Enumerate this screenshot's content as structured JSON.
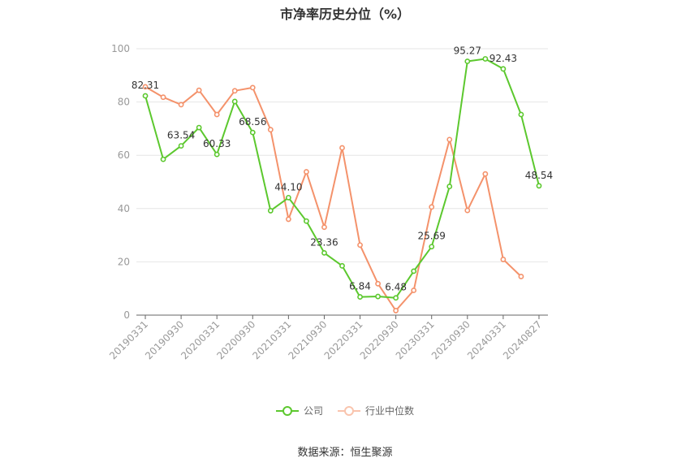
{
  "title": "市净率历史分位（%）",
  "source": "数据来源：恒生聚源",
  "colors": {
    "company": "#5cc82e",
    "industry": "#f4926b",
    "grid": "#e6e6e6",
    "axis": "#999999"
  },
  "chart_data": {
    "type": "line",
    "title": "市净率历史分位（%）",
    "xlabel": "",
    "ylabel": "",
    "ylim": [
      0,
      100
    ],
    "yticks": [
      0,
      20,
      40,
      60,
      80,
      100
    ],
    "grid": true,
    "legend_position": "bottom",
    "x": [
      "20190331",
      "20190630",
      "20190930",
      "20191231",
      "20200331",
      "20200630",
      "20200930",
      "20201231",
      "20210331",
      "20210630",
      "20210930",
      "20211231",
      "20220331",
      "20220630",
      "20220930",
      "20221231",
      "20230331",
      "20230630",
      "20230930",
      "20231231",
      "20240331",
      "20240630",
      "20240827"
    ],
    "xtick_labels": [
      "20190331",
      "20190930",
      "20200331",
      "20200930",
      "20210331",
      "20210930",
      "20220331",
      "20220930",
      "20230331",
      "20230930",
      "20240331",
      "20240827"
    ],
    "series": [
      {
        "name": "公司",
        "values": [
          82.31,
          58.5,
          63.54,
          70.4,
          60.33,
          80.2,
          68.56,
          39.2,
          44.1,
          35.3,
          23.36,
          18.5,
          6.84,
          7.0,
          6.48,
          16.5,
          25.69,
          48.3,
          95.27,
          96.2,
          92.43,
          75.3,
          48.54
        ],
        "labels": {
          "0": "82.31",
          "2": "63.54",
          "4": "60.33",
          "6": "68.56",
          "8": "44.10",
          "10": "23.36",
          "12": "6.84",
          "14": "6.48",
          "16": "25.69",
          "18": "95.27",
          "20": "92.43",
          "22": "48.54"
        }
      },
      {
        "name": "行业中位数",
        "values": [
          85.7,
          81.8,
          79.0,
          84.4,
          75.3,
          84.2,
          85.4,
          69.6,
          36.0,
          53.8,
          33.0,
          62.8,
          26.3,
          11.8,
          1.7,
          9.3,
          40.6,
          65.9,
          39.3,
          53.0,
          20.9,
          14.5,
          null
        ]
      }
    ]
  }
}
